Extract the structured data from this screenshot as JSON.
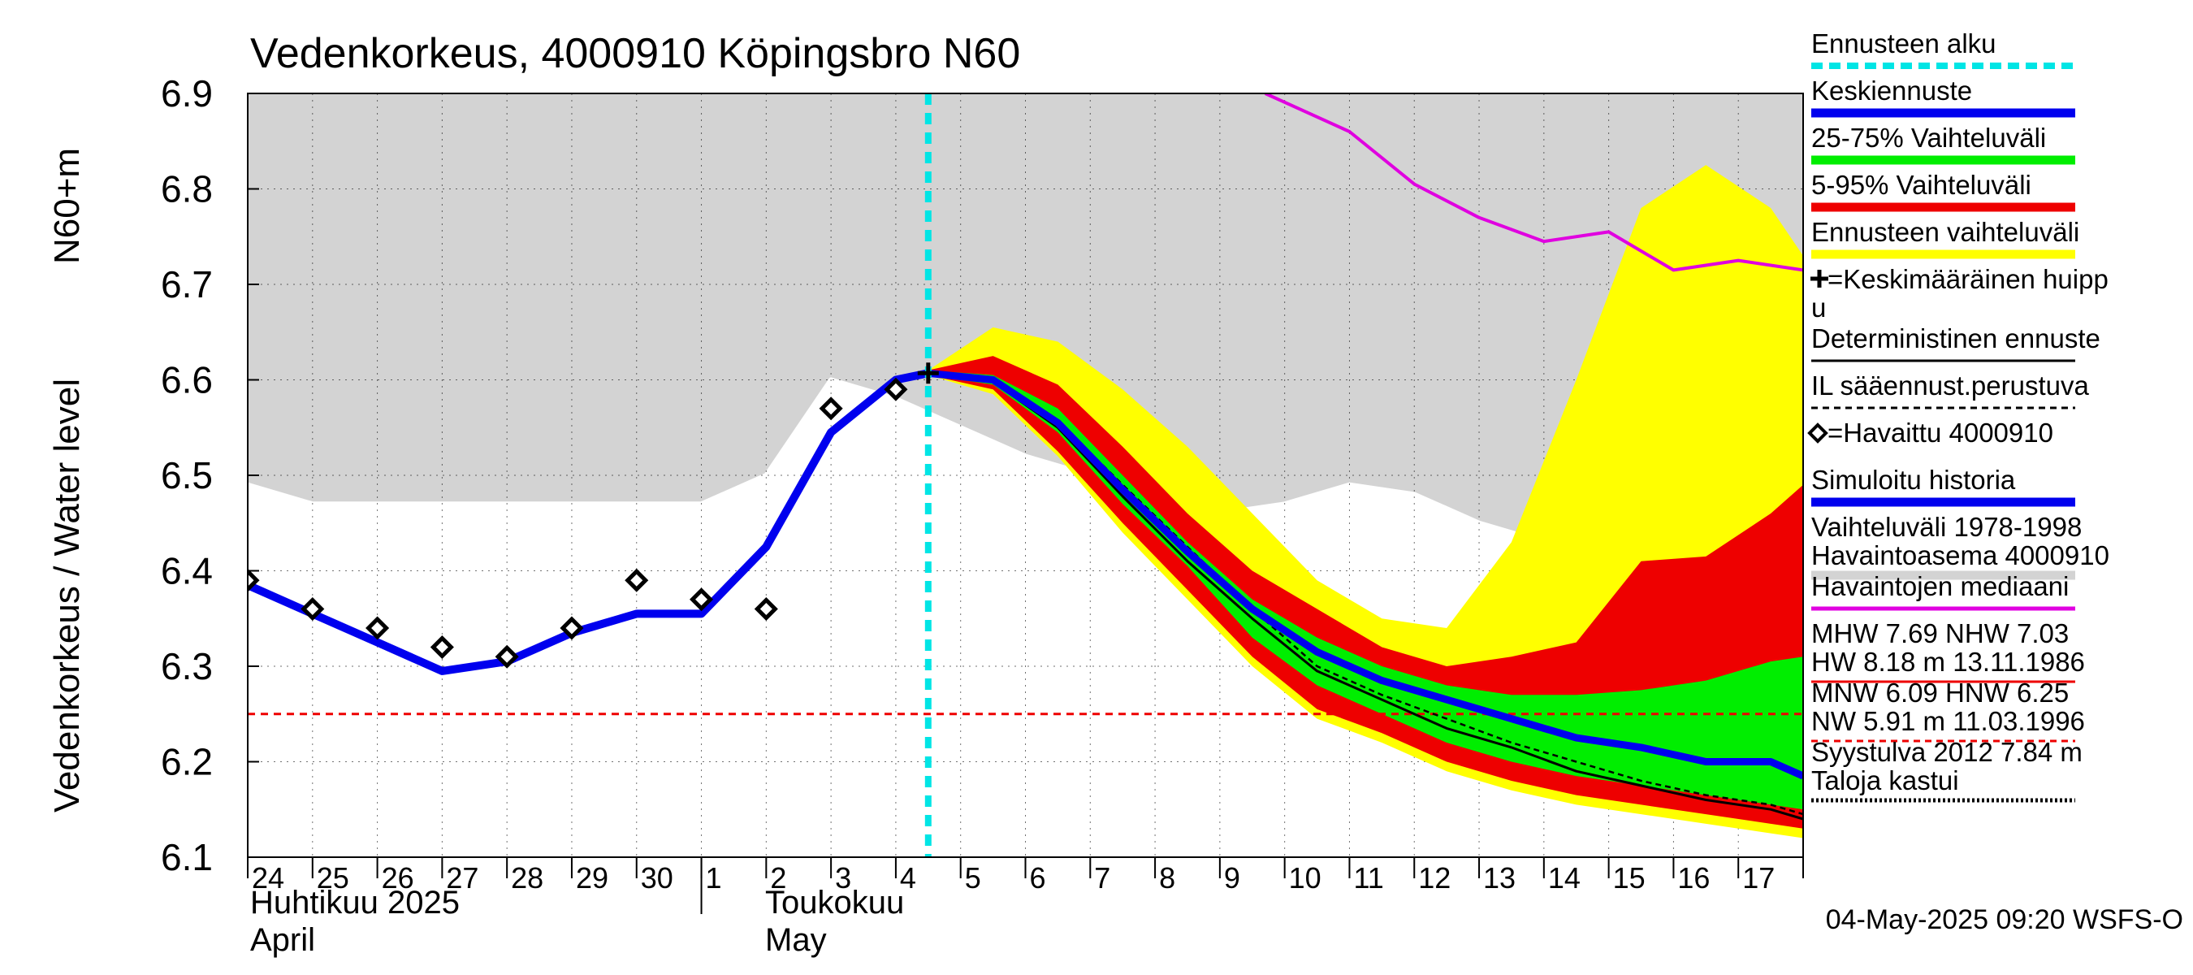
{
  "chart_data": {
    "type": "area",
    "title": "Vedenkorkeus, 4000910 Köpingsbro N60",
    "ylabel_1": "Vedenkorkeus / Water level",
    "ylabel_2": "N60+m",
    "ylim": [
      6.1,
      6.9
    ],
    "yticks": [
      "6.1",
      "6.2",
      "6.3",
      "6.4",
      "6.5",
      "6.6",
      "6.7",
      "6.8",
      "6.9"
    ],
    "xlim": [
      24.0,
      48.0
    ],
    "day_labels": [
      "24",
      "25",
      "26",
      "27",
      "28",
      "29",
      "30",
      "1",
      "2",
      "3",
      "4",
      "5",
      "6",
      "7",
      "8",
      "9",
      "10",
      "11",
      "12",
      "13",
      "14",
      "15",
      "16",
      "17"
    ],
    "month_labels": {
      "april_fi": "Huhtikuu  2025",
      "april_en": "April",
      "may_fi": "Toukokuu",
      "may_en": "May"
    },
    "forecast_start_x": 34.5,
    "reference_line_y": 6.25,
    "grid": true,
    "legend_position": "right",
    "history_range_5_95": {
      "x": [
        24.0,
        25.0,
        26.0,
        27.0,
        28.0,
        29.0,
        30.0,
        31.0,
        32.0,
        33.0,
        34.0,
        35.0,
        36.0,
        37.0,
        38.0,
        39.0,
        40.0,
        41.0,
        42.0,
        43.0,
        44.0,
        45.0,
        46.0,
        47.0,
        48.0
      ],
      "upper": [
        6.9,
        6.9,
        6.9,
        6.9,
        6.9,
        6.9,
        6.9,
        6.9,
        6.9,
        6.9,
        6.9,
        6.9,
        6.9,
        6.9,
        6.9,
        6.9,
        6.9,
        6.9,
        6.9,
        6.9,
        6.9,
        6.9,
        6.9,
        6.9,
        6.9
      ],
      "lower": [
        6.49,
        6.47,
        6.47,
        6.47,
        6.47,
        6.47,
        6.47,
        6.47,
        6.5,
        6.6,
        6.58,
        6.55,
        6.52,
        6.5,
        6.48,
        6.46,
        6.47,
        6.49,
        6.48,
        6.45,
        6.43,
        6.4,
        6.39,
        6.39,
        6.38
      ]
    },
    "forecast_x": [
      34.5,
      35.5,
      36.5,
      37.5,
      38.5,
      39.5,
      40.5,
      41.5,
      42.5,
      43.5,
      44.5,
      45.5,
      46.5,
      47.5,
      48.0
    ],
    "range_total": {
      "upper": [
        6.61,
        6.655,
        6.64,
        6.59,
        6.53,
        6.46,
        6.39,
        6.35,
        6.34,
        6.43,
        6.6,
        6.78,
        6.825,
        6.78,
        6.73
      ],
      "lower": [
        6.605,
        6.585,
        6.52,
        6.44,
        6.37,
        6.3,
        6.245,
        6.22,
        6.19,
        6.17,
        6.155,
        6.145,
        6.135,
        6.125,
        6.12
      ]
    },
    "range_5_95": {
      "upper": [
        6.61,
        6.625,
        6.595,
        6.53,
        6.46,
        6.4,
        6.36,
        6.32,
        6.3,
        6.31,
        6.325,
        6.41,
        6.415,
        6.46,
        6.49
      ],
      "lower": [
        6.605,
        6.59,
        6.525,
        6.45,
        6.38,
        6.31,
        6.255,
        6.23,
        6.2,
        6.18,
        6.165,
        6.155,
        6.145,
        6.135,
        6.13
      ]
    },
    "range_25_75": {
      "upper": [
        6.61,
        6.605,
        6.57,
        6.5,
        6.43,
        6.37,
        6.33,
        6.3,
        6.28,
        6.27,
        6.27,
        6.275,
        6.285,
        6.305,
        6.31
      ],
      "lower": [
        6.605,
        6.595,
        6.545,
        6.47,
        6.405,
        6.33,
        6.28,
        6.25,
        6.22,
        6.2,
        6.185,
        6.175,
        6.165,
        6.155,
        6.15
      ]
    },
    "mean_forecast": [
      6.607,
      6.6,
      6.555,
      6.485,
      6.42,
      6.36,
      6.315,
      6.285,
      6.265,
      6.245,
      6.225,
      6.215,
      6.2,
      6.2,
      6.185
    ],
    "deterministic_forecast": [
      6.607,
      6.598,
      6.55,
      6.478,
      6.41,
      6.35,
      6.295,
      6.265,
      6.235,
      6.215,
      6.19,
      6.175,
      6.16,
      6.15,
      6.14
    ],
    "il_forecast": [
      6.607,
      6.6,
      6.557,
      6.49,
      6.425,
      6.36,
      6.3,
      6.27,
      6.245,
      6.22,
      6.2,
      6.18,
      6.165,
      6.155,
      6.145
    ],
    "simulated_history": {
      "x": [
        24.0,
        25.0,
        26.0,
        27.0,
        28.0,
        29.0,
        30.0,
        31.0,
        32.0,
        33.0,
        34.0,
        34.5
      ],
      "y": [
        6.385,
        6.355,
        6.325,
        6.295,
        6.305,
        6.335,
        6.355,
        6.355,
        6.425,
        6.545,
        6.6,
        6.607
      ]
    },
    "observed": {
      "x": [
        24.0,
        25.0,
        26.0,
        27.0,
        28.0,
        29.0,
        30.0,
        31.0,
        32.0,
        33.0,
        34.0
      ],
      "y": [
        6.39,
        6.36,
        6.34,
        6.32,
        6.31,
        6.34,
        6.39,
        6.37,
        6.36,
        6.57,
        6.59
      ]
    },
    "observed_median": {
      "x": [
        39.7,
        41.0,
        42.0,
        43.0,
        44.0,
        45.0,
        46.0,
        47.0,
        48.0
      ],
      "y": [
        6.9,
        6.86,
        6.805,
        6.77,
        6.745,
        6.755,
        6.715,
        6.725,
        6.715
      ]
    },
    "mean_peak": {
      "x": 34.5,
      "y": 6.607
    },
    "legend": [
      {
        "label": "Ennusteen alku",
        "color": "#00e5e5",
        "style": "dashed-thick"
      },
      {
        "label": "Keskiennuste",
        "color": "#0000ee",
        "style": "thick"
      },
      {
        "label": "25-75% Vaihteluväli",
        "color": "#00ee00",
        "style": "thick"
      },
      {
        "label": "5-95% Vaihteluväli",
        "color": "#ee0000",
        "style": "thick"
      },
      {
        "label": "Ennusteen vaihteluväli",
        "color": "#ffff00",
        "style": "thick"
      },
      {
        "label": "=Keskimääräinen huipp",
        "label2": "u",
        "color": "#000000",
        "style": "plus"
      },
      {
        "label": "Deterministinen ennuste",
        "color": "#000000",
        "style": "thin"
      },
      {
        "label": "IL sääennust.perustuva",
        "color": "#000000",
        "style": "dashed-thin"
      },
      {
        "label": "=Havaittu 4000910",
        "color": "#000000",
        "style": "diamond"
      },
      {
        "label": "Simuloitu historia",
        "color": "#0000ee",
        "style": "thick"
      },
      {
        "label": "Vaihteluväli 1978-1998",
        "label2": " Havaintoasema 4000910",
        "color": "#d3d3d3",
        "style": "thick"
      },
      {
        "label": "Havaintojen mediaani",
        "color": "#e000e0",
        "style": "medium"
      },
      {
        "label": "MHW   7.69 NHW   7.03",
        "label2": "HW   8.18 m 13.11.1986",
        "color": "#ee0000",
        "style": "thin"
      },
      {
        "label": "MNW   6.09 HNW   6.25",
        "label2": "NW   5.91 m 11.03.1996",
        "color": "#ee0000",
        "style": "dashed-thin"
      },
      {
        "label": "Syystulva 2012 7.84 m",
        "label2": "Taloja kastui",
        "color": "#000000",
        "style": "dotted"
      }
    ],
    "footer": "04-May-2025 09:20 WSFS-O"
  }
}
